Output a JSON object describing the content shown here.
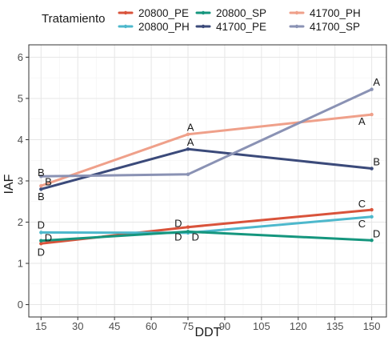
{
  "chart_data": {
    "type": "line",
    "title": "",
    "xlabel": "DDT",
    "ylabel": "IAF",
    "xlim": [
      10,
      156
    ],
    "ylim": [
      -0.3,
      6.3
    ],
    "xticks": [
      15,
      30,
      45,
      60,
      75,
      90,
      105,
      120,
      135,
      150
    ],
    "yticks": [
      0,
      1,
      2,
      3,
      4,
      5,
      6
    ],
    "grid": true,
    "legend": {
      "title": "Tratamiento",
      "placement": "top"
    },
    "series": [
      {
        "name": "20800_PE",
        "color": "#d9533b",
        "x": [
          15,
          75,
          150
        ],
        "values": [
          1.48,
          1.88,
          2.3
        ]
      },
      {
        "name": "20800_PH",
        "color": "#4db8cc",
        "x": [
          15,
          75,
          150
        ],
        "values": [
          1.75,
          1.74,
          2.13
        ]
      },
      {
        "name": "20800_SP",
        "color": "#15967e",
        "x": [
          15,
          75,
          150
        ],
        "values": [
          1.55,
          1.77,
          1.56
        ]
      },
      {
        "name": "41700_PE",
        "color": "#3b4a7a",
        "x": [
          15,
          75,
          150
        ],
        "values": [
          2.8,
          3.77,
          3.3
        ]
      },
      {
        "name": "41700_PH",
        "color": "#efa08a",
        "x": [
          15,
          75,
          150
        ],
        "values": [
          2.88,
          4.13,
          4.61
        ]
      },
      {
        "name": "41700_SP",
        "color": "#8a92b4",
        "x": [
          15,
          75,
          150
        ],
        "values": [
          3.11,
          3.16,
          5.22
        ]
      }
    ],
    "annotations": [
      {
        "text": "B",
        "x": 15,
        "y": 3.2
      },
      {
        "text": "B",
        "x": 15,
        "y": 2.62
      },
      {
        "text": "B",
        "x": 18,
        "y": 2.98
      },
      {
        "text": "D",
        "x": 15,
        "y": 1.93
      },
      {
        "text": "D",
        "x": 18,
        "y": 1.62
      },
      {
        "text": "D",
        "x": 15,
        "y": 1.27
      },
      {
        "text": "A",
        "x": 76,
        "y": 4.3
      },
      {
        "text": "A",
        "x": 76,
        "y": 3.94
      },
      {
        "text": "D",
        "x": 71,
        "y": 1.97
      },
      {
        "text": "D",
        "x": 71,
        "y": 1.64
      },
      {
        "text": "D",
        "x": 78,
        "y": 1.64
      },
      {
        "text": "A",
        "x": 152,
        "y": 5.4
      },
      {
        "text": "A",
        "x": 146,
        "y": 4.45
      },
      {
        "text": "B",
        "x": 152,
        "y": 3.47
      },
      {
        "text": "C",
        "x": 146,
        "y": 2.45
      },
      {
        "text": "C",
        "x": 146,
        "y": 1.96
      },
      {
        "text": "D",
        "x": 152,
        "y": 1.72
      }
    ]
  }
}
